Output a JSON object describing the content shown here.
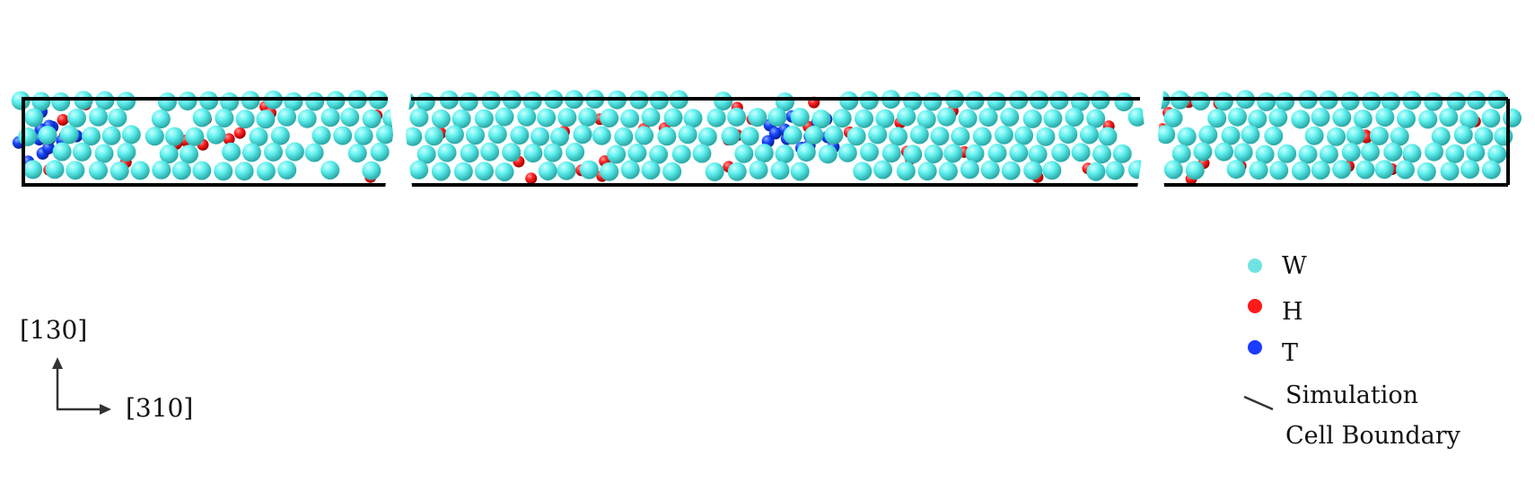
{
  "legend": {
    "items": [
      {
        "label": "W",
        "color": "#6fe3e3"
      },
      {
        "label": "H",
        "color": "#ff1a1a"
      },
      {
        "label": "T",
        "color": "#1a3cff"
      }
    ],
    "boundary_label_line1": "Simulation",
    "boundary_label_line2": "Cell Boundary"
  },
  "axes": {
    "vertical_label": "[130]",
    "horizontal_label": "[310]"
  },
  "colors": {
    "W": "#5ff0ee",
    "W_edge": "#2ab5b3",
    "H": "#ff2020",
    "T": "#1446ff",
    "boundary": "#000000"
  }
}
